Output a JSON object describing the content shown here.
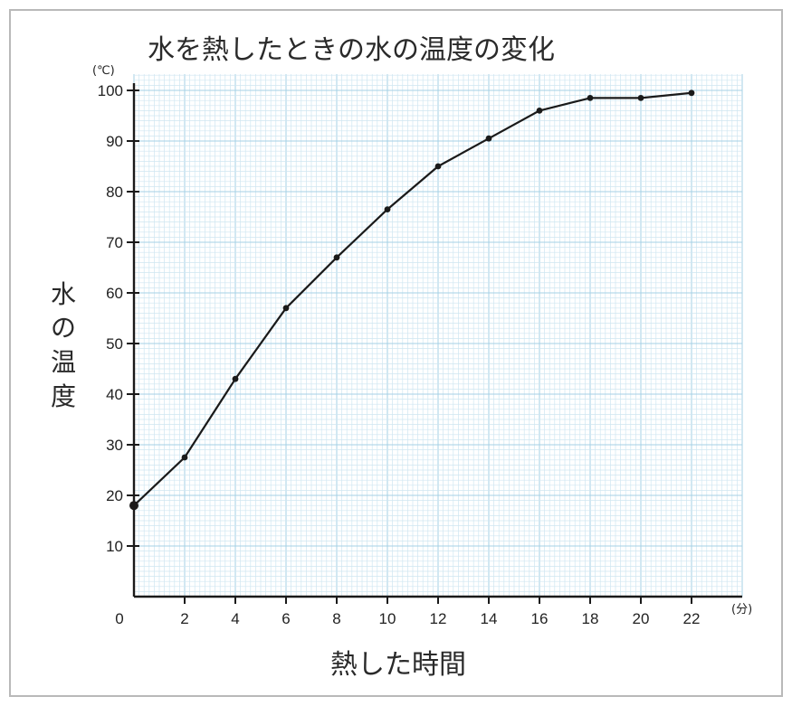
{
  "chart_data": {
    "type": "line",
    "title": "水を熱したときの水の温度の変化",
    "xlabel": "熱した時間",
    "ylabel_chars": [
      "水",
      "の",
      "温",
      "度"
    ],
    "x_unit": "(分)",
    "y_unit": "(℃)",
    "xlim": [
      0,
      24
    ],
    "ylim": [
      0,
      100
    ],
    "grid": true,
    "x_ticks": [
      "0",
      "2",
      "4",
      "6",
      "8",
      "10",
      "12",
      "14",
      "16",
      "18",
      "20",
      "22"
    ],
    "y_ticks": [
      "10",
      "20",
      "30",
      "40",
      "50",
      "60",
      "70",
      "80",
      "90",
      "100"
    ],
    "x": [
      0,
      2,
      4,
      6,
      8,
      10,
      12,
      14,
      16,
      18,
      20,
      22
    ],
    "y": [
      18,
      27.5,
      43,
      57,
      67,
      76.5,
      85,
      90.5,
      96,
      98.5,
      98.5,
      99.5
    ]
  },
  "colors": {
    "grid_minor": "#cfe6f1",
    "grid_major": "#a6d0e6",
    "line": "#1a1a1a",
    "axis": "#1a1a1a"
  }
}
